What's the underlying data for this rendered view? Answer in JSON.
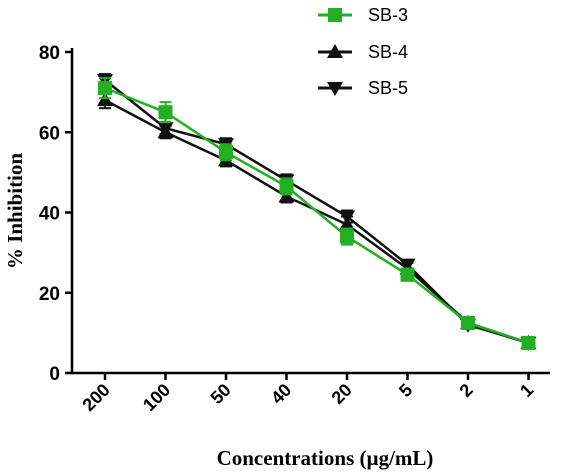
{
  "chart_data": {
    "type": "line",
    "categories": [
      "200",
      "100",
      "50",
      "40",
      "20",
      "5",
      "2",
      "1"
    ],
    "xlabel": "Concentrations (µg/mL)",
    "ylabel": "% Inhibition",
    "ylim": [
      0,
      80
    ],
    "yticks": [
      "0",
      "20",
      "40",
      "60",
      "80"
    ],
    "grid": false,
    "legend_position": "top-right",
    "series": [
      {
        "name": "SB-3",
        "color": "#22b022",
        "marker": "square",
        "values": [
          71,
          65,
          55,
          46.5,
          34,
          24.5,
          12.5,
          7.5
        ],
        "errors": [
          2.5,
          2.5,
          2,
          2,
          2,
          1.5,
          1,
          0.5
        ]
      },
      {
        "name": "SB-4",
        "color": "#111111",
        "marker": "triangle-up",
        "values": [
          68,
          60,
          53,
          44,
          37,
          26,
          12.5,
          7.5
        ],
        "errors": [
          2,
          1.5,
          1.5,
          1.5,
          2,
          1.5,
          1,
          0.5
        ]
      },
      {
        "name": "SB-5",
        "color": "#111111",
        "marker": "triangle-down",
        "values": [
          73,
          61,
          57,
          48,
          39,
          27,
          12,
          7.5
        ],
        "errors": [
          1.5,
          1.5,
          1.5,
          1.5,
          1.5,
          1,
          1,
          0.5
        ]
      }
    ]
  }
}
